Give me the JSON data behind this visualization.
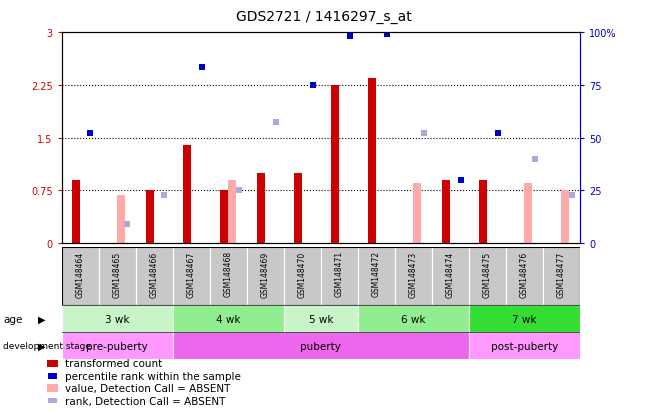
{
  "title": "GDS2721 / 1416297_s_at",
  "samples": [
    "GSM148464",
    "GSM148465",
    "GSM148466",
    "GSM148467",
    "GSM148468",
    "GSM148469",
    "GSM148470",
    "GSM148471",
    "GSM148472",
    "GSM148473",
    "GSM148474",
    "GSM148475",
    "GSM148476",
    "GSM148477"
  ],
  "transformed_count": [
    0.9,
    null,
    0.75,
    1.4,
    0.75,
    1.0,
    1.0,
    2.25,
    2.35,
    null,
    0.9,
    0.9,
    null,
    null
  ],
  "transformed_count_absent": [
    null,
    0.68,
    null,
    null,
    0.9,
    null,
    null,
    null,
    null,
    0.85,
    null,
    null,
    0.85,
    0.75
  ],
  "percentile_rank": [
    1.57,
    null,
    null,
    2.5,
    null,
    null,
    2.25,
    2.95,
    2.97,
    null,
    0.9,
    1.57,
    null,
    null
  ],
  "percentile_rank_absent": [
    null,
    0.27,
    0.68,
    null,
    0.75,
    1.72,
    null,
    null,
    null,
    1.57,
    null,
    null,
    1.2,
    0.68
  ],
  "ylim_left": [
    0,
    3
  ],
  "yticks_left": [
    0,
    0.75,
    1.5,
    2.25,
    3
  ],
  "yticks_left_labels": [
    "0",
    "0.75",
    "1.5",
    "2.25",
    "3"
  ],
  "yticks_right": [
    0,
    25,
    50,
    75,
    100
  ],
  "yticks_right_labels": [
    "0",
    "25",
    "50",
    "75",
    "100%"
  ],
  "age_groups": [
    {
      "label": "3 wk",
      "start": 0,
      "end": 3,
      "color": "#c8f5c8"
    },
    {
      "label": "4 wk",
      "start": 3,
      "end": 6,
      "color": "#90ee90"
    },
    {
      "label": "5 wk",
      "start": 6,
      "end": 8,
      "color": "#c8f5c8"
    },
    {
      "label": "6 wk",
      "start": 8,
      "end": 11,
      "color": "#90ee90"
    },
    {
      "label": "7 wk",
      "start": 11,
      "end": 14,
      "color": "#33dd33"
    }
  ],
  "dev_groups": [
    {
      "label": "pre-puberty",
      "start": 0,
      "end": 3,
      "color": "#ff99ff"
    },
    {
      "label": "puberty",
      "start": 3,
      "end": 11,
      "color": "#ee66ee"
    },
    {
      "label": "post-puberty",
      "start": 11,
      "end": 14,
      "color": "#ff99ff"
    }
  ],
  "bar_color_red": "#cc0000",
  "bar_color_pink": "#ffaaaa",
  "dot_color_blue": "#0000cc",
  "dot_color_lightblue": "#aaaadd",
  "left_axis_color": "#cc0000",
  "right_axis_color": "#0000cc",
  "sample_bg": "#c8c8c8"
}
